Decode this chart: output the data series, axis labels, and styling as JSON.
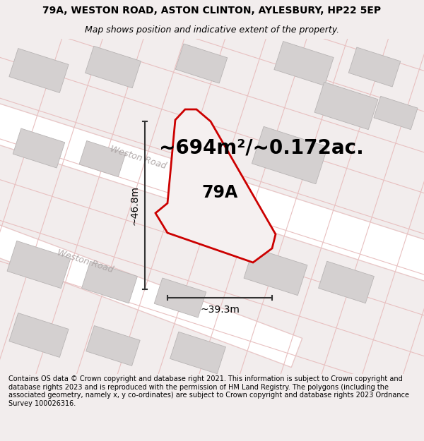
{
  "title_line1": "79A, WESTON ROAD, ASTON CLINTON, AYLESBURY, HP22 5EP",
  "title_line2": "Map shows position and indicative extent of the property.",
  "area_text": "~694m²/~0.172ac.",
  "label_79A": "79A",
  "dim_width": "~39.3m",
  "dim_height": "~46.8m",
  "road_label1": "Weston Road",
  "road_label2": "Weston Road",
  "footer_text": "Contains OS data © Crown copyright and database right 2021. This information is subject to Crown copyright and database rights 2023 and is reproduced with the permission of HM Land Registry. The polygons (including the associated geometry, namely x, y co-ordinates) are subject to Crown copyright and database rights 2023 Ordnance Survey 100026316.",
  "bg_color": "#f2eded",
  "map_bg": "#f2eded",
  "plot_fill": "#f5f0f0",
  "plot_edge_color": "#cc0000",
  "building_color": "#d4d0d0",
  "building_edge": "#b8b4b4",
  "road_fill_color": "#ffffff",
  "road_edge_color": "#e8c8c8",
  "road_line_color": "#e8c0c0",
  "dim_line_color": "#333333",
  "road_label_color": "#b0a8a8",
  "figsize": [
    6.0,
    6.25
  ],
  "dpi": 100,
  "title_fontsize": 10,
  "subtitle_fontsize": 9,
  "area_fontsize": 20,
  "label_fontsize": 17,
  "dim_fontsize": 10,
  "road_label_fontsize": 9,
  "footer_fontsize": 7
}
